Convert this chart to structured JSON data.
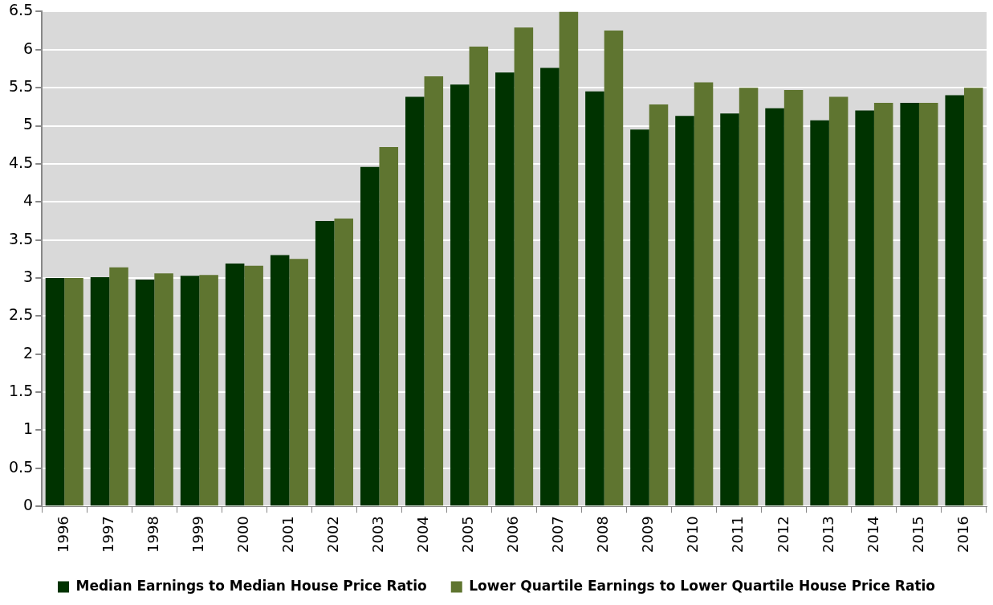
{
  "chart_data": {
    "type": "bar",
    "categories": [
      "1996",
      "1997",
      "1998",
      "1999",
      "2000",
      "2001",
      "2002",
      "2003",
      "2004",
      "2005",
      "2006",
      "2007",
      "2008",
      "2009",
      "2010",
      "2011",
      "2012",
      "2013",
      "2014",
      "2015",
      "2016"
    ],
    "series": [
      {
        "name": "Median Earnings to Median House Price Ratio",
        "color": "#003300",
        "values": [
          3.0,
          3.01,
          2.98,
          3.03,
          3.19,
          3.3,
          3.75,
          4.46,
          5.38,
          5.54,
          5.7,
          5.76,
          5.45,
          4.95,
          5.13,
          5.16,
          5.23,
          5.07,
          5.2,
          5.3,
          5.4
        ]
      },
      {
        "name": "Lower Quartile Earnings to Lower Quartile House Price Ratio",
        "color": "#5f7530",
        "values": [
          3.0,
          3.14,
          3.06,
          3.04,
          3.16,
          3.25,
          3.78,
          4.72,
          5.65,
          6.04,
          6.29,
          6.5,
          6.25,
          5.28,
          5.57,
          5.5,
          5.47,
          5.38,
          5.3,
          5.3,
          5.5
        ]
      }
    ],
    "ylim": [
      0,
      6.5
    ],
    "yticks": [
      0,
      0.5,
      1,
      1.5,
      2,
      2.5,
      3,
      3.5,
      4,
      4.5,
      5,
      5.5,
      6,
      6.5
    ],
    "grid": "y",
    "legend": "bottom"
  }
}
